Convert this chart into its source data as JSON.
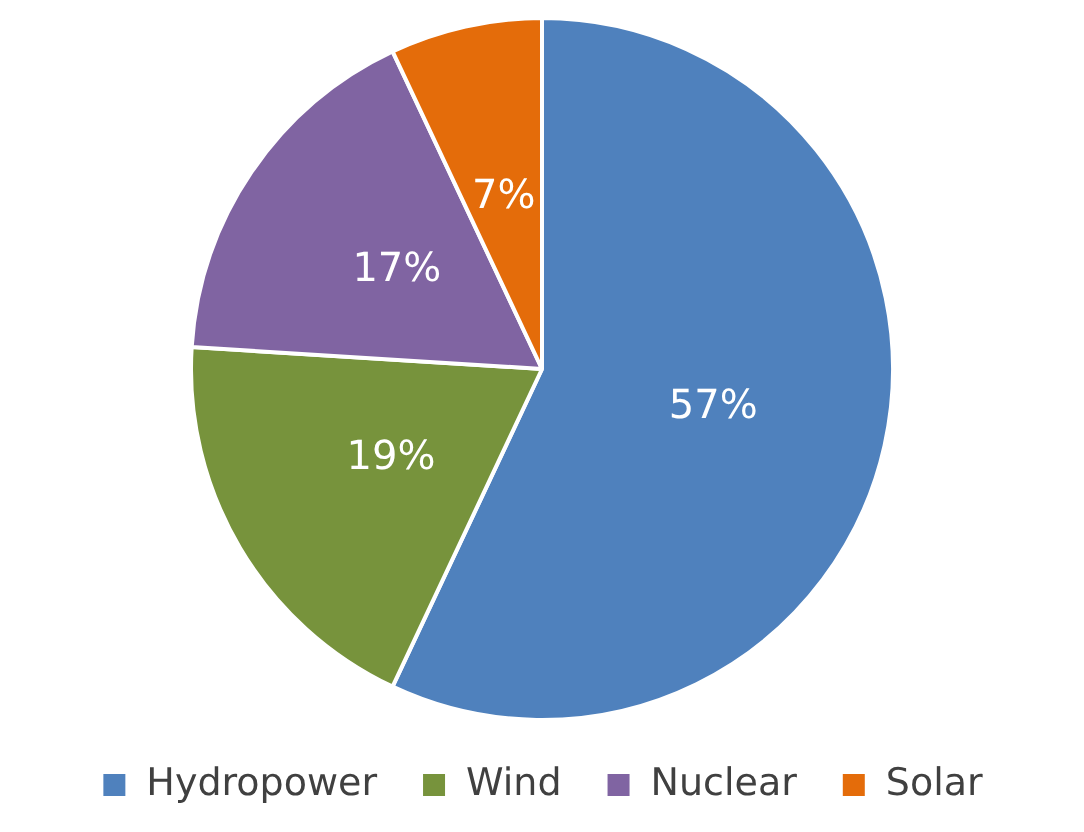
{
  "chart_data": {
    "type": "pie",
    "categories": [
      "Hydropower",
      "Wind",
      "Nuclear",
      "Solar"
    ],
    "values": [
      57,
      19,
      17,
      7
    ],
    "colors": [
      "#4f81bd",
      "#77933c",
      "#8064a2",
      "#e46c0a"
    ],
    "value_labels": [
      "57%",
      "19%",
      "17%",
      "7%"
    ],
    "legend": "bottom"
  }
}
